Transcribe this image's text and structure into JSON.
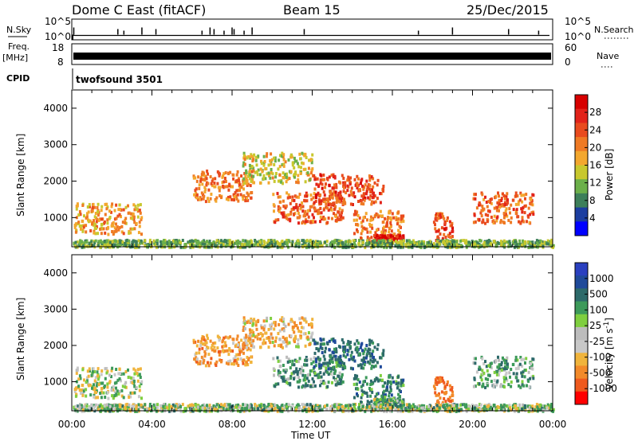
{
  "header": {
    "station": "Dome C East (fitACF)",
    "beam": "Beam 15",
    "date": "25/Dec/2015"
  },
  "left_labels": {
    "nsky": "N.Sky",
    "freq": "Freq.",
    "freq_unit": "[MHz]",
    "cpid": "CPID"
  },
  "right_labels": {
    "nsearch": "N.Search",
    "nave": "Nave"
  },
  "cpid_value": "twofsound 3501",
  "time_axis": {
    "label": "Time UT",
    "ticks": [
      "00:00",
      "04:00",
      "08:00",
      "12:00",
      "16:00",
      "20:00",
      "00:00"
    ]
  },
  "colors": {
    "power_scale": [
      "#0000ff",
      "#1c3ea0",
      "#3d7f5a",
      "#6cb04a",
      "#c8c82e",
      "#f3a72e",
      "#ef7a24",
      "#e94b1e",
      "#e2231a",
      "#d70000"
    ],
    "velocity_scale": [
      "#ff0000",
      "#ef5a1e",
      "#f28a2a",
      "#f0b43c",
      "#c8c8c8",
      "#bcbcbc",
      "#7fcf3f",
      "#3d9a5a",
      "#2d6a6a",
      "#1f4a9a",
      "#2a40c0"
    ]
  },
  "chart_data": [
    {
      "type": "line",
      "name_left": "N.Sky",
      "name_right": "N.Search",
      "y_ticks_left": [
        "10^5",
        "10^0"
      ],
      "y_ticks_right": [
        "10^5",
        "10^0"
      ],
      "x_range_hours": [
        0,
        24
      ],
      "spikes_x_hours": [
        0.1,
        2.3,
        2.6,
        3.5,
        4.2,
        6.5,
        6.9,
        7.1,
        7.6,
        8.0,
        8.1,
        8.6,
        9.0,
        11.6,
        17.3,
        19.0,
        21.8,
        23.3
      ],
      "baseline_level": 0.25
    },
    {
      "type": "area",
      "name_left": "Freq. [MHz]",
      "name_right": "Nave",
      "y_ticks_left": [
        "18",
        "8"
      ],
      "y_ticks_right": [
        "60",
        "0"
      ],
      "x_range_hours": [
        0,
        24
      ],
      "band_level": 0.35
    },
    {
      "type": "heatmap",
      "name": "Power",
      "colorbar_label": "Power [dB]",
      "colorbar_ticks": [
        "28",
        "24",
        "20",
        "16",
        "12",
        "8",
        "4"
      ],
      "ylabel": "Slant Range [km]",
      "y_ticks": [
        "4000",
        "3000",
        "2000",
        "1000"
      ],
      "ylim": [
        200,
        4500
      ],
      "xlim_hours": [
        0,
        24
      ],
      "echo_regions": [
        {
          "x_start": 0.1,
          "x_end": 3.5,
          "range": 1000,
          "value": 18
        },
        {
          "x_start": 6.0,
          "x_end": 9.0,
          "range": 1900,
          "value": 20
        },
        {
          "x_start": 8.5,
          "x_end": 12.0,
          "range": 2400,
          "value": 14
        },
        {
          "x_start": 10.0,
          "x_end": 13.5,
          "range": 1300,
          "value": 22
        },
        {
          "x_start": 12.0,
          "x_end": 15.5,
          "range": 1800,
          "value": 24
        },
        {
          "x_start": 14.0,
          "x_end": 16.5,
          "range": 800,
          "value": 20
        },
        {
          "x_start": 15.0,
          "x_end": 16.5,
          "range": 450,
          "value": 28
        },
        {
          "x_start": 18.0,
          "x_end": 19.0,
          "range": 750,
          "value": 24
        },
        {
          "x_start": 20.0,
          "x_end": 23.0,
          "range": 1300,
          "value": 22
        },
        {
          "x_start": 0.0,
          "x_end": 24.0,
          "range": 300,
          "value": 10
        }
      ]
    },
    {
      "type": "heatmap",
      "name": "Velocity",
      "colorbar_label": "Velocity [m s^-1]",
      "colorbar_ticks": [
        "1000",
        "500",
        "100",
        "25",
        "-25",
        "-100",
        "-500",
        "-1000"
      ],
      "ylabel": "Slant Range [km]",
      "y_ticks": [
        "4000",
        "3000",
        "2000",
        "1000"
      ],
      "ylim": [
        200,
        4500
      ],
      "xlim_hours": [
        0,
        24
      ],
      "echo_regions": [
        {
          "x_start": 0.1,
          "x_end": 3.5,
          "range": 1000,
          "value": 0
        },
        {
          "x_start": 6.0,
          "x_end": 9.0,
          "range": 1900,
          "value": -300
        },
        {
          "x_start": 8.5,
          "x_end": 12.0,
          "range": 2400,
          "value": -200
        },
        {
          "x_start": 10.0,
          "x_end": 13.5,
          "range": 1300,
          "value": 200
        },
        {
          "x_start": 12.0,
          "x_end": 15.5,
          "range": 1800,
          "value": 400
        },
        {
          "x_start": 14.0,
          "x_end": 16.5,
          "range": 800,
          "value": 300
        },
        {
          "x_start": 15.0,
          "x_end": 16.5,
          "range": 450,
          "value": 100
        },
        {
          "x_start": 18.0,
          "x_end": 19.0,
          "range": 750,
          "value": -500
        },
        {
          "x_start": 20.0,
          "x_end": 23.0,
          "range": 1300,
          "value": 150
        },
        {
          "x_start": 0.0,
          "x_end": 24.0,
          "range": 300,
          "value": 50
        }
      ]
    }
  ]
}
